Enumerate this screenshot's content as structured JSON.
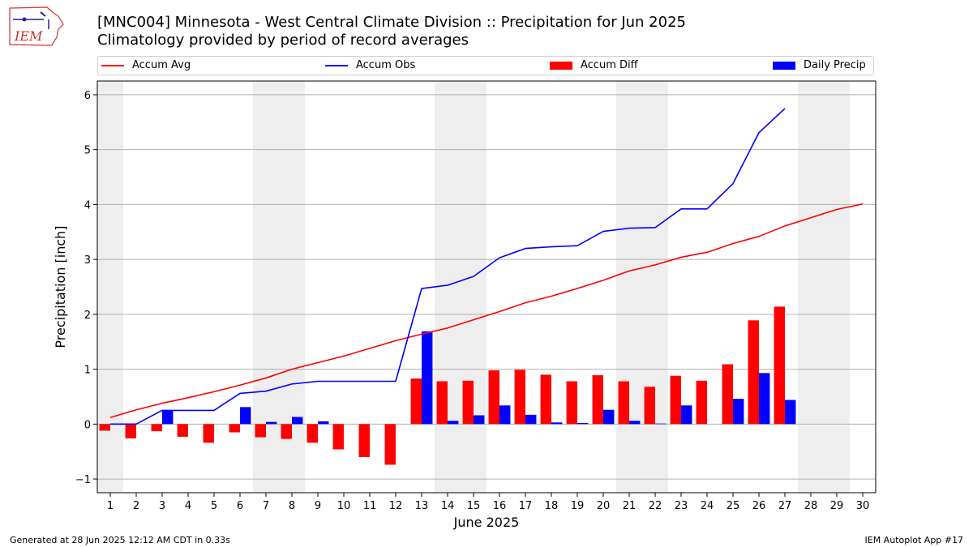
{
  "header": {
    "title_line1": "[MNC004] Minnesota - West Central Climate Division :: Precipitation for Jun 2025",
    "title_line2": "Climatology provided by period of record averages"
  },
  "logo": {
    "text": "IEM"
  },
  "footer": {
    "left": "Generated at 28 Jun 2025 12:12 AM CDT in 0.33s",
    "right": "IEM Autoplot App #17"
  },
  "chart_data": {
    "type": "bar",
    "xlabel": "June 2025",
    "ylabel": "Precipitation [inch]",
    "x": [
      1,
      2,
      3,
      4,
      5,
      6,
      7,
      8,
      9,
      10,
      11,
      12,
      13,
      14,
      15,
      16,
      17,
      18,
      19,
      20,
      21,
      22,
      23,
      24,
      25,
      26,
      27,
      28,
      29,
      30
    ],
    "xlim": [
      0.5,
      30.5
    ],
    "ylim": [
      -1.25,
      6.25
    ],
    "yticks": [
      -1,
      0,
      1,
      2,
      3,
      4,
      5,
      6
    ],
    "grid": "y",
    "legend_position": "top",
    "weekend_shading": [
      [
        0.5,
        1.5
      ],
      [
        6.5,
        8.5
      ],
      [
        13.5,
        15.5
      ],
      [
        20.5,
        22.5
      ],
      [
        27.5,
        29.5
      ]
    ],
    "colors": {
      "avg": "#ff0000",
      "obs": "#0000ff",
      "diff": "#ff0000",
      "daily": "#0000ff",
      "shade": "#eeeeee",
      "grid": "#b0b0b0"
    },
    "series": [
      {
        "name": "Accum Avg",
        "kind": "line",
        "values": [
          0.12,
          0.26,
          0.38,
          0.48,
          0.59,
          0.71,
          0.84,
          1.0,
          1.12,
          1.24,
          1.38,
          1.52,
          1.64,
          1.75,
          1.9,
          2.05,
          2.21,
          2.33,
          2.47,
          2.62,
          2.79,
          2.9,
          3.04,
          3.13,
          3.29,
          3.42,
          3.61,
          3.76,
          3.91,
          4.01
        ]
      },
      {
        "name": "Accum Obs",
        "kind": "line",
        "values": [
          0.0,
          0.0,
          0.25,
          0.25,
          0.25,
          0.56,
          0.6,
          0.73,
          0.78,
          0.78,
          0.78,
          0.78,
          2.47,
          2.53,
          2.69,
          3.03,
          3.2,
          3.23,
          3.25,
          3.51,
          3.57,
          3.58,
          3.92,
          3.92,
          4.38,
          5.31,
          5.75,
          null,
          null,
          null
        ]
      },
      {
        "name": "Accum Diff",
        "kind": "bar",
        "values": [
          -0.12,
          -0.26,
          -0.13,
          -0.23,
          -0.34,
          -0.15,
          -0.24,
          -0.27,
          -0.34,
          -0.46,
          -0.6,
          -0.74,
          0.83,
          0.78,
          0.79,
          0.98,
          0.99,
          0.9,
          0.78,
          0.89,
          0.78,
          0.68,
          0.88,
          0.79,
          1.09,
          1.89,
          2.14,
          null,
          null,
          null
        ]
      },
      {
        "name": "Daily Precip",
        "kind": "bar",
        "values": [
          0.0,
          0.0,
          0.25,
          0.0,
          0.0,
          0.31,
          0.04,
          0.13,
          0.05,
          0.0,
          0.0,
          0.0,
          1.69,
          0.06,
          0.16,
          0.34,
          0.17,
          0.03,
          0.02,
          0.26,
          0.06,
          0.01,
          0.34,
          0.0,
          0.46,
          0.93,
          0.44,
          null,
          null,
          null
        ]
      }
    ]
  }
}
